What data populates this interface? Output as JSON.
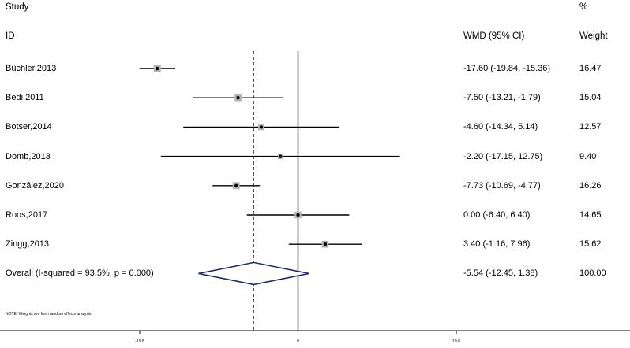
{
  "header": {
    "study_label": "Study",
    "percent_label": "%",
    "id_label": "ID",
    "effect_label": "WMD (95% CI)",
    "weight_label": "Weight"
  },
  "chart_data": {
    "type": "forest",
    "effect_measure": "WMD",
    "studies": [
      {
        "label": "Büchler,2013",
        "estimate": -17.6,
        "lower": -19.84,
        "upper": -15.36,
        "ci_text": "-17.60 (-19.84, -15.36)",
        "weight": "16.47"
      },
      {
        "label": "Bedi,2011",
        "estimate": -7.5,
        "lower": -13.21,
        "upper": -1.79,
        "ci_text": "-7.50 (-13.21, -1.79)",
        "weight": "15.04"
      },
      {
        "label": "Botser,2014",
        "estimate": -4.6,
        "lower": -14.34,
        "upper": 5.14,
        "ci_text": "-4.60 (-14.34, 5.14)",
        "weight": "12.57"
      },
      {
        "label": "Domb,2013",
        "estimate": -2.2,
        "lower": -17.15,
        "upper": 12.75,
        "ci_text": "-2.20 (-17.15, 12.75)",
        "weight": "9.40"
      },
      {
        "label": "González,2020",
        "estimate": -7.73,
        "lower": -10.69,
        "upper": -4.77,
        "ci_text": "-7.73 (-10.69, -4.77)",
        "weight": "16.26"
      },
      {
        "label": "Roos,2017",
        "estimate": 0.0,
        "lower": -6.4,
        "upper": 6.4,
        "ci_text": "0.00 (-6.40, 6.40)",
        "weight": "14.65"
      },
      {
        "label": "Zingg,2013",
        "estimate": 3.4,
        "lower": -1.16,
        "upper": 7.96,
        "ci_text": "3.40 (-1.16, 7.96)",
        "weight": "15.62"
      }
    ],
    "overall": {
      "label": "Overall  (I-squared = 93.5%, p = 0.000)",
      "estimate": -5.54,
      "lower": -12.45,
      "upper": 1.38,
      "ci_text": "-5.54 (-12.45, 1.38)",
      "weight": "100.00"
    },
    "null_line": 0,
    "x_ticks": [
      -19.8,
      0,
      19.8
    ],
    "x_tick_labels": [
      "-19.8",
      "0",
      "19.8"
    ],
    "xlim": [
      -19.8,
      19.8
    ],
    "note": "NOTE: Weights are from random effects analysis",
    "colors": {
      "box": "#b4b4b4",
      "ci_line": "#000000",
      "overall_diamond": "#1f2a6b",
      "overall_line": "#7a2a3a"
    }
  }
}
